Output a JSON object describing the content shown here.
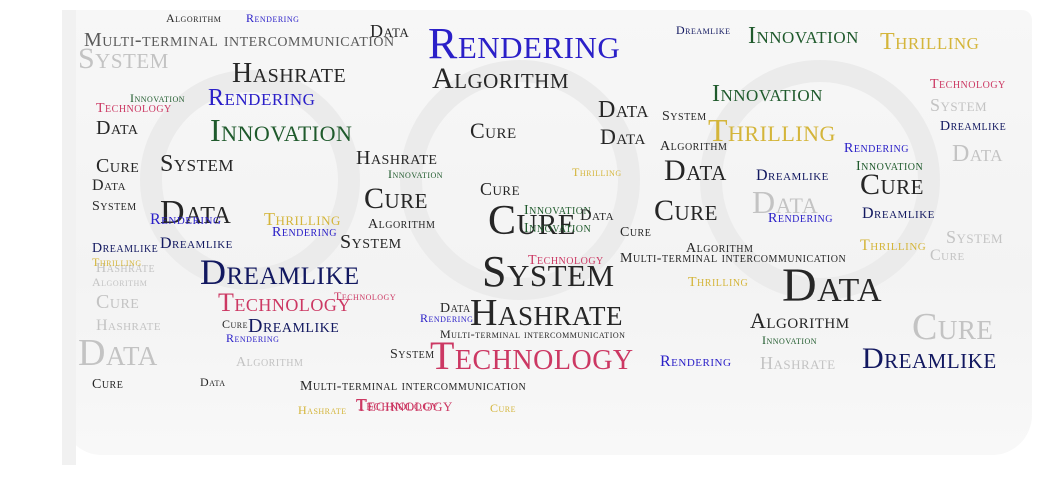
{
  "colors": {
    "black": "#262626",
    "blue": "#2b20c8",
    "green": "#1f5a2c",
    "gold": "#d4b53a",
    "pink": "#cc3863",
    "navy": "#121860",
    "gray": "#c3c3c3",
    "darkgray": "#5a5a5a"
  },
  "words": {
    "w01": "Rendering",
    "w02": "Innovation",
    "w03": "Thrilling",
    "w04": "Hashrate",
    "w05": "Algorithm",
    "w06": "System",
    "w07": "Rendering",
    "w08": "Innovation",
    "w09": "Thrilling",
    "w10": "Cure",
    "w11": "Data",
    "w12": "Cure",
    "w13": "System",
    "w14": "Data",
    "w15": "Cure",
    "w16": "Dreamlike",
    "w17": "System",
    "w18": "Data",
    "w19": "Hashrate",
    "w20": "Technology",
    "w21": "Data",
    "w22": "Technology",
    "w23": "Dreamlike",
    "w24": "Algorithm",
    "w25": "Cure",
    "w26": "Rendering",
    "w27": "Dreamlike",
    "w28": "Innovation",
    "w29": "Thrilling",
    "w30": "System",
    "w31": "Data",
    "w32": "Cure",
    "w33": "Algorithm",
    "w34": "Innovation",
    "w35": "Data",
    "w36": "Rendering",
    "w37": "Technology",
    "w38": "Thrilling",
    "w39": "Dreamlike",
    "w40": "Hashrate",
    "w41": "Cure",
    "w42": "Data",
    "w43": "Multi-terminal intercommunication",
    "w44": "Multi-terminal intercommunication",
    "w45": "Multi-terminal intercommunication",
    "w46": "Multi-terminal intercommunication",
    "w47": "Technology",
    "w48": "Hashrate",
    "w49": "Cure",
    "w50": "Innovation",
    "w51": "Dreamlike",
    "w52": "System",
    "w53": "Data",
    "w54": "Rendering",
    "w55": "Algorithm",
    "w56": "Dreamlike",
    "w57": "Hashrate",
    "w58": "Technology",
    "w59": "Cure",
    "w60": "Innovation",
    "w61": "Rendering",
    "w62": "Thrilling",
    "w63": "Algorithm",
    "w64": "Cure",
    "w65": "Technology",
    "w66": "Data",
    "w67": "Hashrate",
    "w68": "Innovation",
    "w69": "Rendering",
    "w70": "Cure",
    "w71": "System",
    "w72": "Algorithm",
    "w73": "Data",
    "w74": "Cure",
    "w75": "Dreamlike",
    "w76": "Rendering",
    "w77": "Thrilling",
    "w78": "Technology",
    "w79": "Data",
    "w80": "Data",
    "w81": "System",
    "w82": "Cure",
    "w83": "Hashrate",
    "w84": "Data",
    "w85": "Rendering",
    "w86": "Dreamlike",
    "w87": "Cure",
    "w88": "Algorithm",
    "w89": "System",
    "w90": "Innovation",
    "w91": "Thrilling",
    "w92": "Cure",
    "w93": "Dreamlike",
    "w94": "Technology",
    "w95": "Algorithm",
    "w96": "System",
    "w97": "Innovation",
    "w98": "Data",
    "w99": "Rendering"
  }
}
